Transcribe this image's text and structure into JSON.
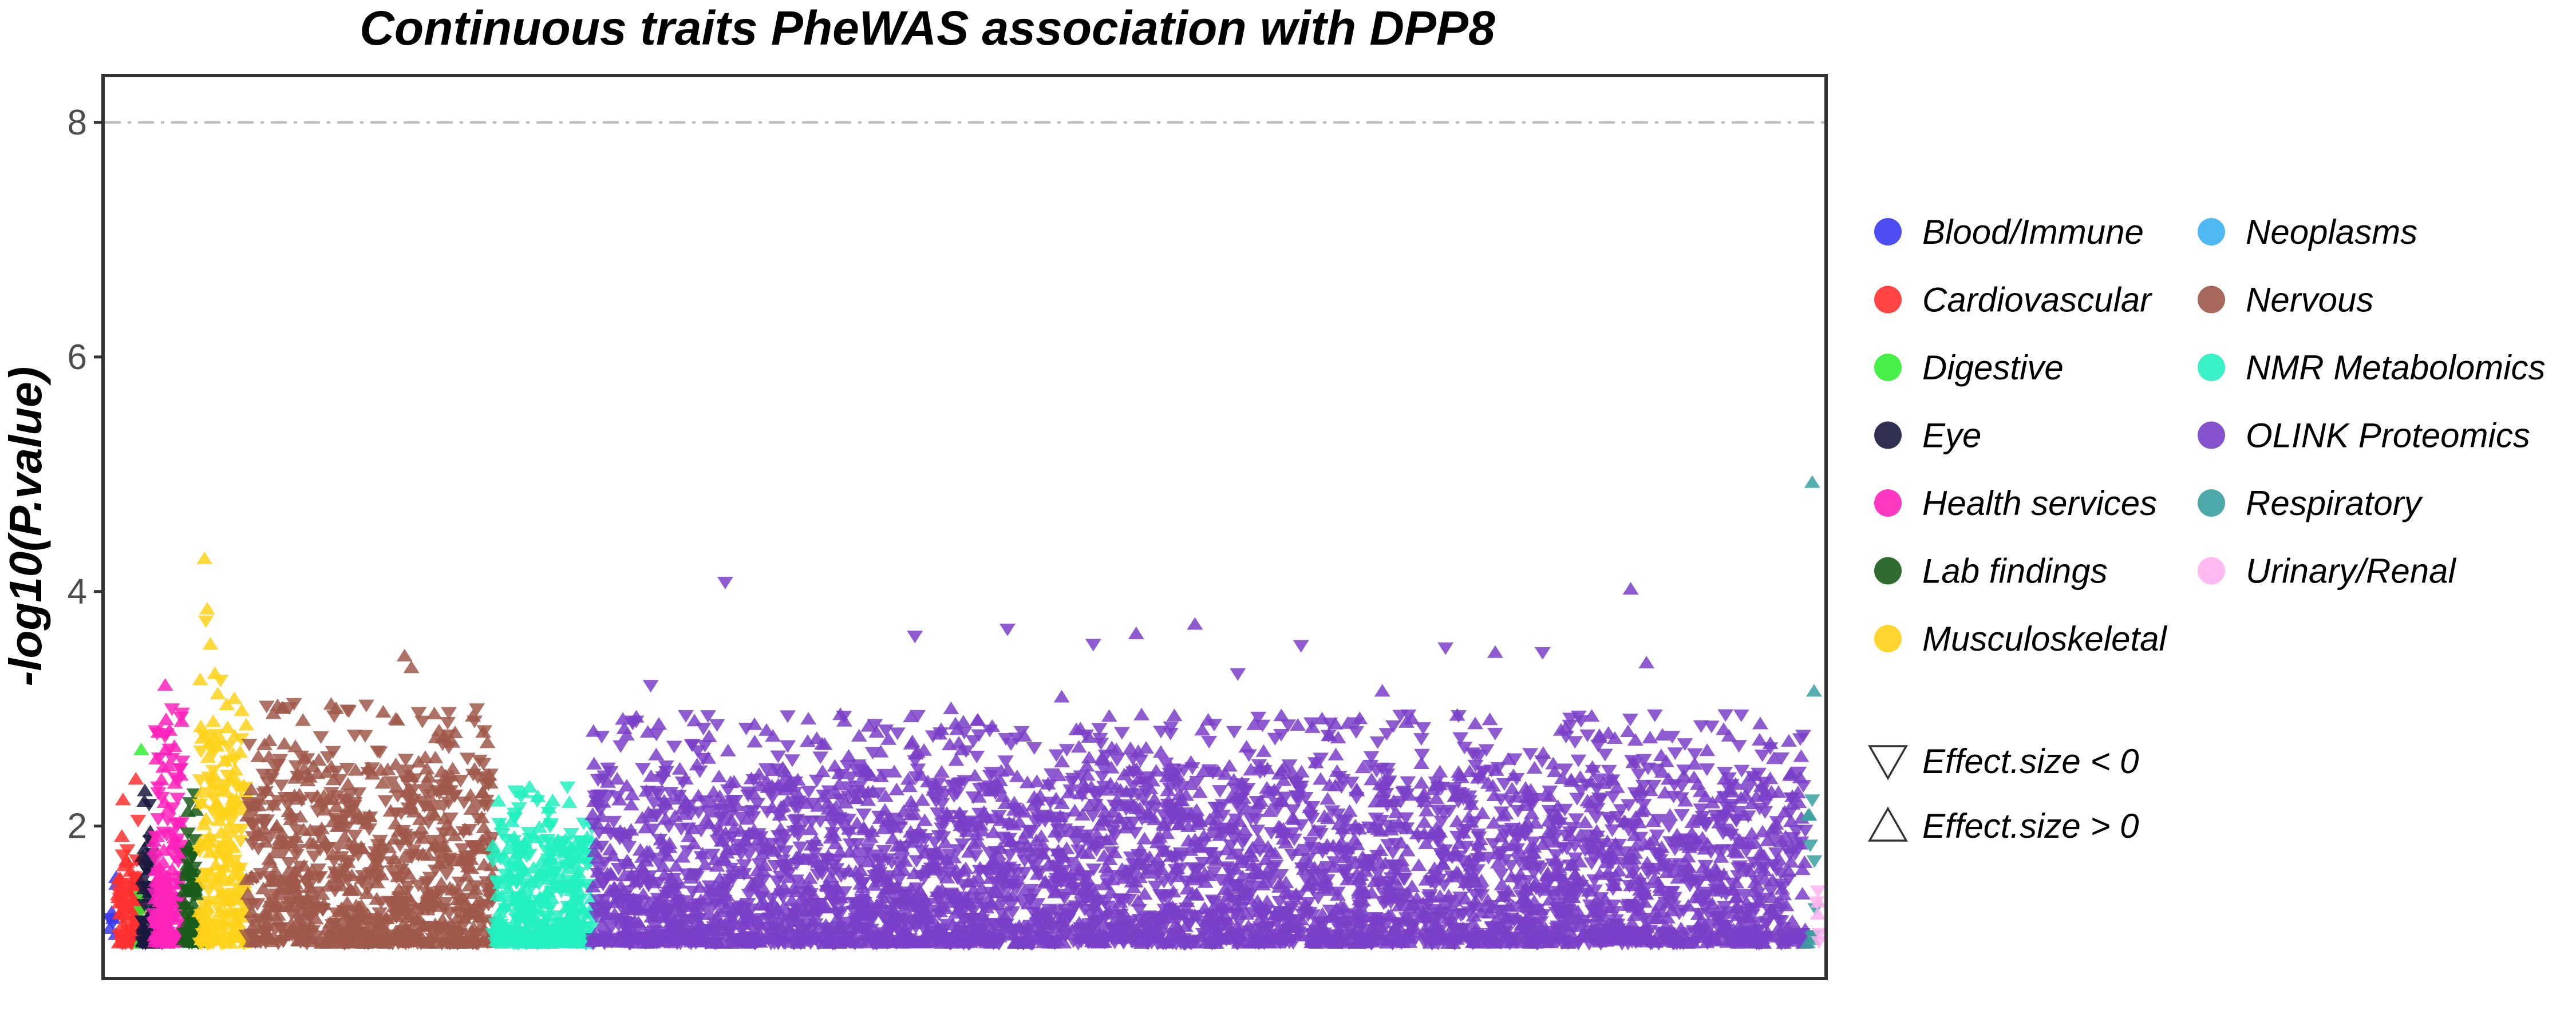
{
  "chart_data": {
    "type": "scatter",
    "title": "Continuous traits PheWAS association with DPP8",
    "xlabel": "",
    "ylabel": "-log10(P.value)",
    "ylim": [
      0.7,
      8.4
    ],
    "yticks": [
      2,
      4,
      6,
      8
    ],
    "reference_line": {
      "y": 8,
      "style": "dash-dot",
      "color": "#bdbdbd"
    },
    "grid": false,
    "legend_position": "right",
    "categories": [
      {
        "name": "Blood/Immune",
        "color": "#3a3af0",
        "x_range": [
          0,
          20
        ],
        "n": 8,
        "max": 1.6,
        "peaks": []
      },
      {
        "name": "Cardiovascular",
        "color": "#ff3030",
        "x_range": [
          20,
          70
        ],
        "n": 90,
        "max": 1.8,
        "peaks": [
          [
            60,
            2.4
          ],
          [
            65,
            2.05
          ]
        ]
      },
      {
        "name": "Digestive",
        "color": "#33ee33",
        "x_range": [
          70,
          74
        ],
        "n": 4,
        "max": 1.6,
        "peaks": [
          [
            72,
            2.65
          ]
        ]
      },
      {
        "name": "Eye",
        "color": "#1a1a40",
        "x_range": [
          74,
          100
        ],
        "n": 55,
        "max": 1.9,
        "peaks": [
          [
            80,
            2.3
          ],
          [
            92,
            1.95
          ]
        ]
      },
      {
        "name": "Health services",
        "color": "#ff22bb",
        "x_range": [
          100,
          165
        ],
        "n": 170,
        "max": 2.6,
        "peaks": [
          [
            125,
            3.2
          ],
          [
            140,
            3.0
          ],
          [
            110,
            2.8
          ]
        ]
      },
      {
        "name": "Lab findings",
        "color": "#1a5c1a",
        "x_range": [
          165,
          200
        ],
        "n": 85,
        "max": 1.9,
        "peaks": [
          [
            180,
            2.2
          ]
        ]
      },
      {
        "name": "Musculoskeletal",
        "color": "#ffd21a",
        "x_range": [
          200,
          305
        ],
        "n": 220,
        "max": 2.8,
        "peaks": [
          [
            212,
            4.28
          ],
          [
            218,
            3.85
          ],
          [
            215,
            3.75
          ],
          [
            235,
            3.3
          ],
          [
            225,
            3.55
          ]
        ]
      },
      {
        "name": "Nervous",
        "color": "#a0584a",
        "x_range": [
          305,
          850
        ],
        "n": 900,
        "max": 2.6,
        "peaks": [
          [
            655,
            3.45
          ],
          [
            670,
            3.35
          ],
          [
            430,
            2.9
          ],
          [
            815,
            3.0
          ],
          [
            740,
            2.75
          ]
        ]
      },
      {
        "name": "NMR Metabolomics",
        "color": "#22f0c0",
        "x_range": [
          850,
          1070
        ],
        "n": 360,
        "max": 1.9,
        "peaks": [
          [
            900,
            2.3
          ],
          [
            950,
            2.25
          ],
          [
            1020,
            2.2
          ]
        ]
      },
      {
        "name": "OLINK Proteomics",
        "color": "#7a3fc8",
        "x_range": [
          1070,
          3760
        ],
        "n": 4200,
        "max": 2.5,
        "peaks": [
          [
            1365,
            4.08
          ],
          [
            1785,
            3.62
          ],
          [
            1990,
            3.68
          ],
          [
            2180,
            3.55
          ],
          [
            2405,
            3.72
          ],
          [
            2275,
            3.64
          ],
          [
            2640,
            3.54
          ],
          [
            3370,
            4.02
          ],
          [
            3405,
            3.39
          ],
          [
            3175,
            3.48
          ],
          [
            2960,
            3.52
          ],
          [
            3070,
            3.48
          ],
          [
            1200,
            3.2
          ],
          [
            2500,
            3.3
          ],
          [
            1620,
            2.95
          ],
          [
            1865,
            3.0
          ],
          [
            2110,
            3.1
          ],
          [
            2820,
            3.15
          ],
          [
            3580,
            2.95
          ],
          [
            1700,
            2.8
          ],
          [
            2010,
            2.75
          ],
          [
            3260,
            2.9
          ]
        ]
      },
      {
        "name": "Respiratory",
        "color": "#3aa0a0",
        "x_range": [
          3760,
          3780
        ],
        "n": 10,
        "max": 2.1,
        "peaks": [
          [
            3772,
            4.93
          ],
          [
            3776,
            3.15
          ]
        ]
      },
      {
        "name": "Urinary/Renal",
        "color": "#ffb3f0",
        "x_range": [
          3780,
          3790
        ],
        "n": 6,
        "max": 1.4,
        "peaks": []
      }
    ],
    "legend": {
      "entries": [
        {
          "name": "Blood/Immune",
          "color": "#3a3af0"
        },
        {
          "name": "Cardiovascular",
          "color": "#ff3030"
        },
        {
          "name": "Digestive",
          "color": "#33ee33"
        },
        {
          "name": "Eye",
          "color": "#1a1a40"
        },
        {
          "name": "Health services",
          "color": "#ff22bb"
        },
        {
          "name": "Lab findings",
          "color": "#1a5c1a"
        },
        {
          "name": "Musculoskeletal",
          "color": "#ffd21a"
        },
        {
          "name": "Neoplasms",
          "color": "#3ab0f0"
        },
        {
          "name": "Nervous",
          "color": "#a0584a"
        },
        {
          "name": "NMR Metabolomics",
          "color": "#22f0c0"
        },
        {
          "name": "OLINK Proteomics",
          "color": "#7a3fc8"
        },
        {
          "name": "Respiratory",
          "color": "#3aa0a0"
        },
        {
          "name": "Urinary/Renal",
          "color": "#ffb3f0"
        }
      ],
      "shapes": [
        {
          "label": "Effect.size < 0",
          "shape": "triangle-down"
        },
        {
          "label": "Effect.size > 0",
          "shape": "triangle-up"
        }
      ]
    }
  }
}
